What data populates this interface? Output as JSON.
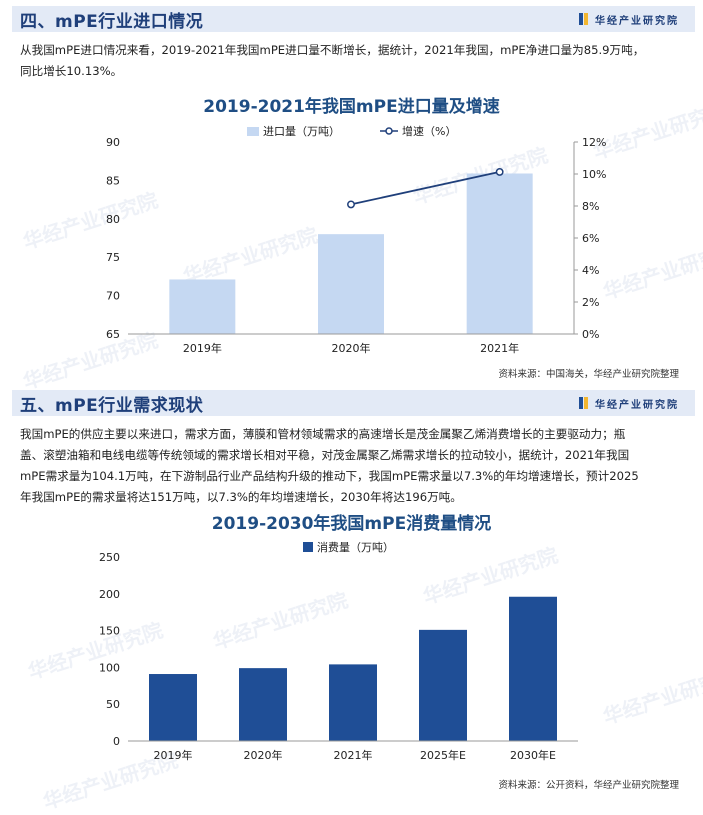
{
  "brand": {
    "name": "华经产业研究院",
    "logo_colors": [
      "#1f4e96",
      "#f2b630"
    ]
  },
  "section1": {
    "title": "四、mPE行业进口情况",
    "paragraph_lines": [
      "从我国mPE进口情况来看，2019-2021年我国mPE进口量不断增长，据统计，2021年我国，mPE净进口量为85.9万吨，",
      "同比增长10.13%。"
    ],
    "source": "资料来源：中国海关，华经产业研究院整理"
  },
  "section2": {
    "title": "五、mPE行业需求现状",
    "paragraph_lines": [
      "我国mPE的供应主要以来进口，需求方面，薄膜和管材领域需求的高速增长是茂金属聚乙烯消费增长的主要驱动力；瓶",
      "盖、滚塑油箱和电线电缆等传统领域的需求增长相对平稳，对茂金属聚乙烯需求增长的拉动较小，据统计，2021年我国",
      "mPE需求量为104.1万吨，在下游制品行业产品结构升级的推动下，我国mPE需求量以7.3%的年均增速增长，预计2025",
      "年我国mPE的需求量将达151万吨，以7.3%的年均增速增长，2030年将达196万吨。"
    ],
    "source": "资料来源：公开资料，华经产业研究院整理"
  },
  "chart_data": [
    {
      "type": "bar",
      "title": "2019-2021年我国mPE进口量及增速",
      "categories": [
        "2019年",
        "2020年",
        "2021年"
      ],
      "series": [
        {
          "name": "进口量（万吨）",
          "type": "bar",
          "axis": "left",
          "values": [
            72.1,
            78.0,
            85.9
          ],
          "color": "#c5d8f2"
        },
        {
          "name": "增速（%）",
          "type": "line",
          "axis": "right",
          "values": [
            null,
            8.1,
            10.13
          ],
          "color": "#1f3f7a"
        }
      ],
      "ylim": [
        65,
        90
      ],
      "yticks": [
        65,
        70,
        75,
        80,
        85,
        90
      ],
      "y2lim": [
        0,
        12
      ],
      "y2ticks": [
        "0%",
        "2%",
        "4%",
        "6%",
        "8%",
        "10%",
        "12%"
      ],
      "legend": "top-center",
      "grid": false
    },
    {
      "type": "bar",
      "title": "2019-2030年我国mPE消费量情况",
      "categories": [
        "2019年",
        "2020年",
        "2021年",
        "2025年E",
        "2030年E"
      ],
      "series": [
        {
          "name": "消费量（万吨）",
          "values": [
            91,
            99,
            104.1,
            151,
            196
          ],
          "color": "#1f4e96"
        }
      ],
      "ylim": [
        0,
        250
      ],
      "yticks": [
        0,
        50,
        100,
        150,
        200,
        250
      ],
      "legend": "top-center",
      "grid": false
    }
  ]
}
